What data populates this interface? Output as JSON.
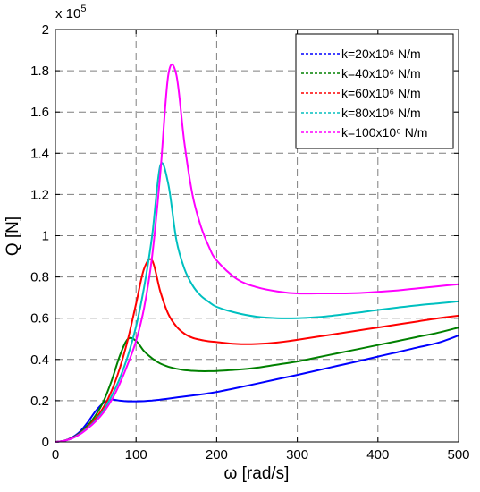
{
  "chart_data": {
    "type": "line",
    "xlabel": "ω [rad/s]",
    "ylabel": "Q [N]",
    "y_multiplier": "x 10",
    "y_multiplier_exponent": "5",
    "xlim": [
      0,
      500
    ],
    "ylim": [
      0,
      2
    ],
    "x_ticks": [
      "0",
      "100",
      "200",
      "300",
      "400",
      "500"
    ],
    "y_ticks": [
      "0",
      "0.2",
      "0.4",
      "0.6",
      "0.8",
      "1",
      "1.2",
      "1.4",
      "1.6",
      "1.8",
      "2"
    ],
    "grid": true,
    "legend_position": "top-right",
    "x": [
      0,
      10,
      20,
      30,
      40,
      50,
      60,
      70,
      80,
      90,
      100,
      110,
      120,
      130,
      140,
      150,
      160,
      170,
      180,
      190,
      200,
      225,
      250,
      275,
      300,
      325,
      350,
      375,
      400,
      425,
      450,
      475,
      500
    ],
    "series": [
      {
        "name": "k=20x10⁶ N/m",
        "color": "#0000ff",
        "values": [
          0,
          0.005,
          0.02,
          0.048,
          0.095,
          0.15,
          0.19,
          0.205,
          0.2,
          0.197,
          0.197,
          0.198,
          0.201,
          0.205,
          0.21,
          0.215,
          0.22,
          0.225,
          0.23,
          0.236,
          0.242,
          0.262,
          0.283,
          0.304,
          0.325,
          0.347,
          0.369,
          0.391,
          0.414,
          0.436,
          0.459,
          0.481,
          0.516
        ]
      },
      {
        "name": "k=40x10⁶ N/m",
        "color": "#008000",
        "values": [
          0,
          0.005,
          0.018,
          0.043,
          0.08,
          0.13,
          0.2,
          0.3,
          0.42,
          0.5,
          0.49,
          0.44,
          0.405,
          0.38,
          0.365,
          0.355,
          0.348,
          0.345,
          0.343,
          0.343,
          0.344,
          0.35,
          0.36,
          0.375,
          0.39,
          0.41,
          0.43,
          0.45,
          0.47,
          0.49,
          0.51,
          0.53,
          0.555
        ]
      },
      {
        "name": "k=60x10⁶ N/m",
        "color": "#ff0000",
        "values": [
          0,
          0.005,
          0.017,
          0.04,
          0.072,
          0.115,
          0.17,
          0.25,
          0.36,
          0.5,
          0.67,
          0.84,
          0.88,
          0.73,
          0.62,
          0.56,
          0.525,
          0.505,
          0.495,
          0.488,
          0.484,
          0.475,
          0.475,
          0.482,
          0.495,
          0.51,
          0.525,
          0.54,
          0.555,
          0.57,
          0.585,
          0.6,
          0.612
        ]
      },
      {
        "name": "k=80x10⁶ N/m",
        "color": "#00c0c0",
        "values": [
          0,
          0.005,
          0.016,
          0.038,
          0.068,
          0.105,
          0.155,
          0.225,
          0.31,
          0.42,
          0.56,
          0.75,
          1.0,
          1.34,
          1.25,
          0.98,
          0.84,
          0.76,
          0.71,
          0.68,
          0.655,
          0.625,
          0.607,
          0.6,
          0.6,
          0.605,
          0.615,
          0.627,
          0.64,
          0.652,
          0.663,
          0.672,
          0.682
        ]
      },
      {
        "name": "k=100x10⁶ N/m",
        "color": "#ff00ff",
        "values": [
          0,
          0.005,
          0.016,
          0.036,
          0.065,
          0.1,
          0.145,
          0.205,
          0.285,
          0.38,
          0.49,
          0.65,
          0.9,
          1.3,
          1.78,
          1.78,
          1.45,
          1.2,
          1.05,
          0.95,
          0.88,
          0.79,
          0.75,
          0.73,
          0.72,
          0.72,
          0.72,
          0.722,
          0.728,
          0.735,
          0.745,
          0.755,
          0.765
        ]
      }
    ]
  }
}
